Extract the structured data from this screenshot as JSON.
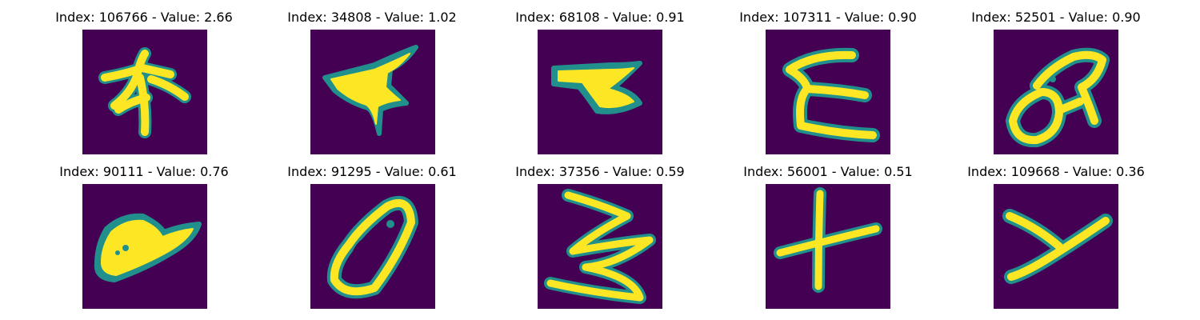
{
  "colormap": {
    "background": "#440154",
    "mid": "#21908d",
    "high": "#fde725"
  },
  "panels": [
    {
      "title": "Index: 106766 - Value: 2.66"
    },
    {
      "title": "Index: 34808 - Value: 1.02"
    },
    {
      "title": "Index: 68108 - Value: 0.91"
    },
    {
      "title": "Index: 107311 - Value: 0.90"
    },
    {
      "title": "Index: 52501 - Value: 0.90"
    },
    {
      "title": "Index: 90111 - Value: 0.76"
    },
    {
      "title": "Index: 91295 - Value: 0.61"
    },
    {
      "title": "Index: 37356 - Value: 0.59"
    },
    {
      "title": "Index: 56001 - Value: 0.51"
    },
    {
      "title": "Index: 109668 - Value: 0.36"
    }
  ]
}
